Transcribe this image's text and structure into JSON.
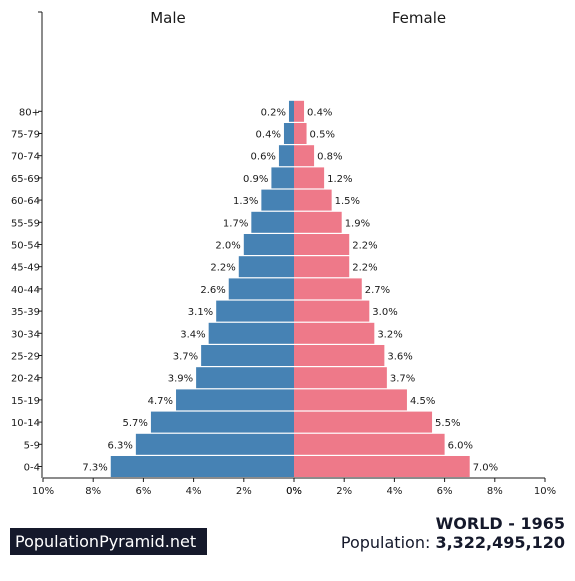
{
  "chart_data": {
    "type": "bar",
    "orientation": "horizontal",
    "subtype": "population-pyramid",
    "categories": [
      "0-4",
      "5-9",
      "10-14",
      "15-19",
      "20-24",
      "25-29",
      "30-34",
      "35-39",
      "40-44",
      "45-49",
      "50-54",
      "55-59",
      "60-64",
      "65-69",
      "70-74",
      "75-79",
      "80+"
    ],
    "series": [
      {
        "name": "Male",
        "color": "#4682b4",
        "values": [
          7.3,
          6.3,
          5.7,
          4.7,
          3.9,
          3.7,
          3.4,
          3.1,
          2.6,
          2.2,
          2.0,
          1.7,
          1.3,
          0.9,
          0.6,
          0.4,
          0.2
        ],
        "labels": [
          "7.3%",
          "6.3%",
          "5.7%",
          "4.7%",
          "3.9%",
          "3.7%",
          "3.4%",
          "3.1%",
          "2.6%",
          "2.2%",
          "2.0%",
          "1.7%",
          "1.3%",
          "0.9%",
          "0.6%",
          "0.4%",
          "0.2%"
        ]
      },
      {
        "name": "Female",
        "color": "#ee7989",
        "values": [
          7.0,
          6.0,
          5.5,
          4.5,
          3.7,
          3.6,
          3.2,
          3.0,
          2.7,
          2.2,
          2.2,
          1.9,
          1.5,
          1.2,
          0.8,
          0.5,
          0.4
        ],
        "labels": [
          "7.0%",
          "6.0%",
          "5.5%",
          "4.5%",
          "3.7%",
          "3.6%",
          "3.2%",
          "3.0%",
          "2.7%",
          "2.2%",
          "2.2%",
          "1.9%",
          "1.5%",
          "1.2%",
          "0.8%",
          "0.5%",
          "0.4%"
        ]
      }
    ],
    "xlim": [
      0,
      10
    ],
    "left_ticks": [
      "10%",
      "8%",
      "6%",
      "4%",
      "2%",
      "0%"
    ],
    "right_ticks": [
      "0%",
      "2%",
      "4%",
      "6%",
      "8%",
      "10%"
    ],
    "grid": false
  },
  "footer": {
    "brand": "PopulationPyramid.net",
    "region_year": "WORLD - 1965",
    "population_label": "Population:",
    "population_value": "3,322,495,120"
  }
}
